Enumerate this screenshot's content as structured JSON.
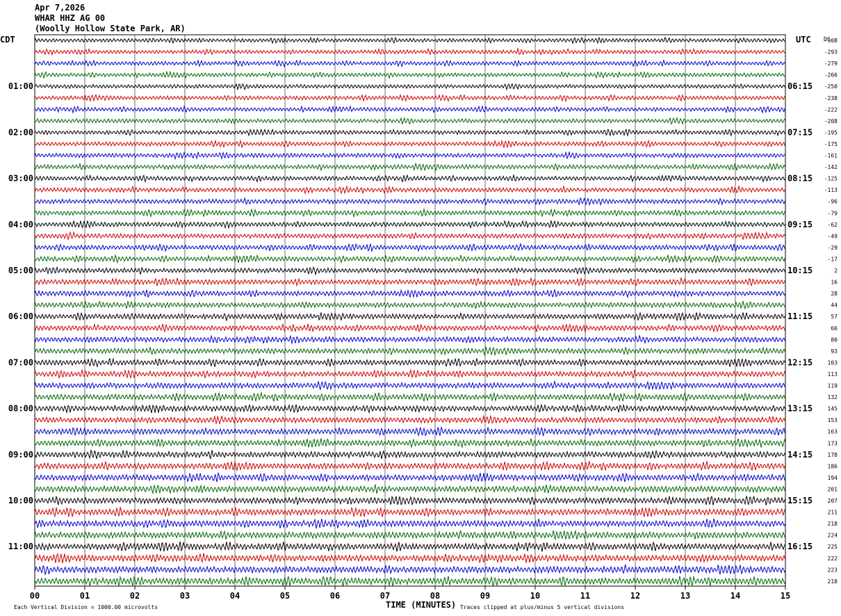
{
  "header": {
    "date": "Apr 7,2026",
    "station": "WHAR HHZ AG 00",
    "location": "(Woolly Hollow State Park, AR)"
  },
  "labels": {
    "left_zone": "CDT",
    "right_zone": "UTC",
    "dc_label": "DC",
    "x_axis_title": "TIME (MINUTES)",
    "scale_note": "Each Vertical Division = 1000.00 microvolts",
    "clip_note": "Traces clipped at plus/minus 5 vertical divisions"
  },
  "colors": {
    "trace_cycle": [
      "#000000",
      "#cc0000",
      "#0000cc",
      "#006600"
    ],
    "grid": "#000000"
  },
  "chart_data": {
    "type": "line",
    "description_type": "helicorder",
    "x_tick_labels": [
      "00",
      "01",
      "02",
      "03",
      "04",
      "05",
      "06",
      "07",
      "08",
      "09",
      "10",
      "11",
      "12",
      "13",
      "14",
      "15"
    ],
    "xlim": [
      0,
      15
    ],
    "left_hour_labels": [
      "01:00",
      "02:00",
      "03:00",
      "04:00",
      "05:00",
      "06:00",
      "07:00",
      "08:00",
      "09:00",
      "10:00",
      "11:00"
    ],
    "right_hour_labels": [
      "06:15",
      "07:15",
      "08:15",
      "09:15",
      "10:15",
      "11:15",
      "12:15",
      "13:15",
      "14:15",
      "15:15",
      "16:15"
    ],
    "dc_offsets": [
      "-308",
      "-293",
      "-279",
      "-266",
      "-250",
      "-238",
      "-222",
      "-208",
      "-195",
      "-175",
      "-161",
      "-142",
      "-125",
      "-113",
      "-96",
      "-79",
      "-62",
      "-49",
      "-29",
      "-17",
      "2",
      "16",
      "28",
      "44",
      "57",
      "66",
      "80",
      "93",
      "103",
      "113",
      "119",
      "132",
      "145",
      "153",
      "163",
      "173",
      "178",
      "186",
      "194",
      "201",
      "207",
      "211",
      "218",
      "224",
      "225",
      "222",
      "223",
      "218"
    ],
    "trace_count": 48
  }
}
